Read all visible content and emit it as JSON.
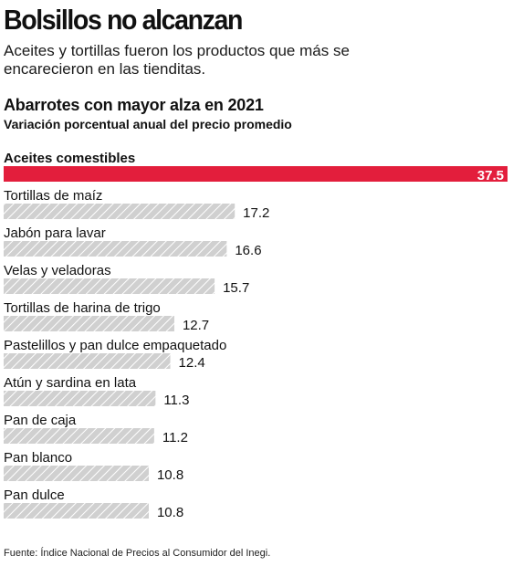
{
  "headline": "Bolsillos no alcanzan",
  "dek": "Aceites y tortillas fueron los productos que  más se encarecieron en las tienditas.",
  "source": "Fuente: Índice Nacional de Precios al Consumidor del Inegi.",
  "colors": {
    "highlight": "#e31e3c",
    "bar": "#d0d0d0",
    "bar_hatch": "#ffffff",
    "text": "#111111"
  },
  "chart_data": {
    "type": "bar",
    "orientation": "horizontal",
    "title": "Abarrotes con mayor alza en 2021",
    "subtitle": "Variación porcentual anual del precio promedio",
    "categories": [
      "Aceites comestibles",
      "Tortillas de maíz",
      "Jabón para lavar",
      "Velas y veladoras",
      "Tortillas de harina de trigo",
      "Pastelillos y pan dulce empaquetado",
      "Atún y sardina en lata",
      "Pan de caja",
      "Pan blanco",
      "Pan dulce"
    ],
    "values": [
      37.5,
      17.2,
      16.6,
      15.7,
      12.7,
      12.4,
      11.3,
      11.2,
      10.8,
      10.8
    ],
    "value_labels": [
      "37.5",
      "17.2",
      "16.6",
      "15.7",
      "12.7",
      "12.4",
      "11.3",
      "11.2",
      "10.8",
      "10.8"
    ],
    "highlighted_index": 0,
    "xlim": [
      0,
      37.5
    ],
    "grid": false,
    "legend": "none"
  }
}
